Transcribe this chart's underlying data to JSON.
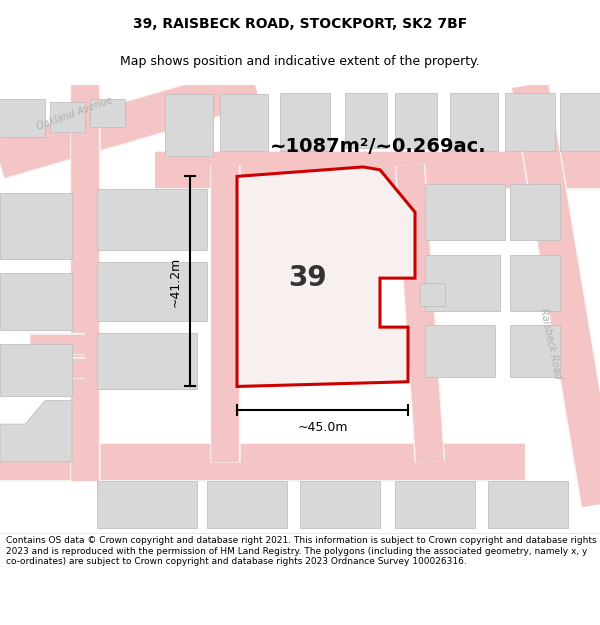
{
  "title": "39, RAISBECK ROAD, STOCKPORT, SK2 7BF",
  "subtitle": "Map shows position and indicative extent of the property.",
  "area_text": "~1087m²/~0.269ac.",
  "label_39": "39",
  "dim_width": "~45.0m",
  "dim_height": "~41.2m",
  "footer_text": "Contains OS data © Crown copyright and database right 2021. This information is subject to Crown copyright and database rights 2023 and is reproduced with the permission of HM Land Registry. The polygons (including the associated geometry, namely x, y co-ordinates) are subject to Crown copyright and database rights 2023 Ordnance Survey 100026316.",
  "bg_color": "#ffffff",
  "map_bg": "#eeecec",
  "road_color": "#f5c5c5",
  "road_white": "#f5f5f5",
  "building_color": "#d8d8d8",
  "building_stroke": "#c0c0c0",
  "highlight_color": "#cc0000",
  "highlight_fill": "#f8efef",
  "street_label_color": "#b0b0b0",
  "title_color": "#000000",
  "footer_color": "#000000",
  "dim_color": "#000000",
  "area_text_color": "#000000",
  "title_fontsize": 10,
  "subtitle_fontsize": 9,
  "area_fontsize": 14,
  "label_fontsize": 20,
  "dim_fontsize": 9,
  "footer_fontsize": 6.5,
  "street_fontsize": 7
}
